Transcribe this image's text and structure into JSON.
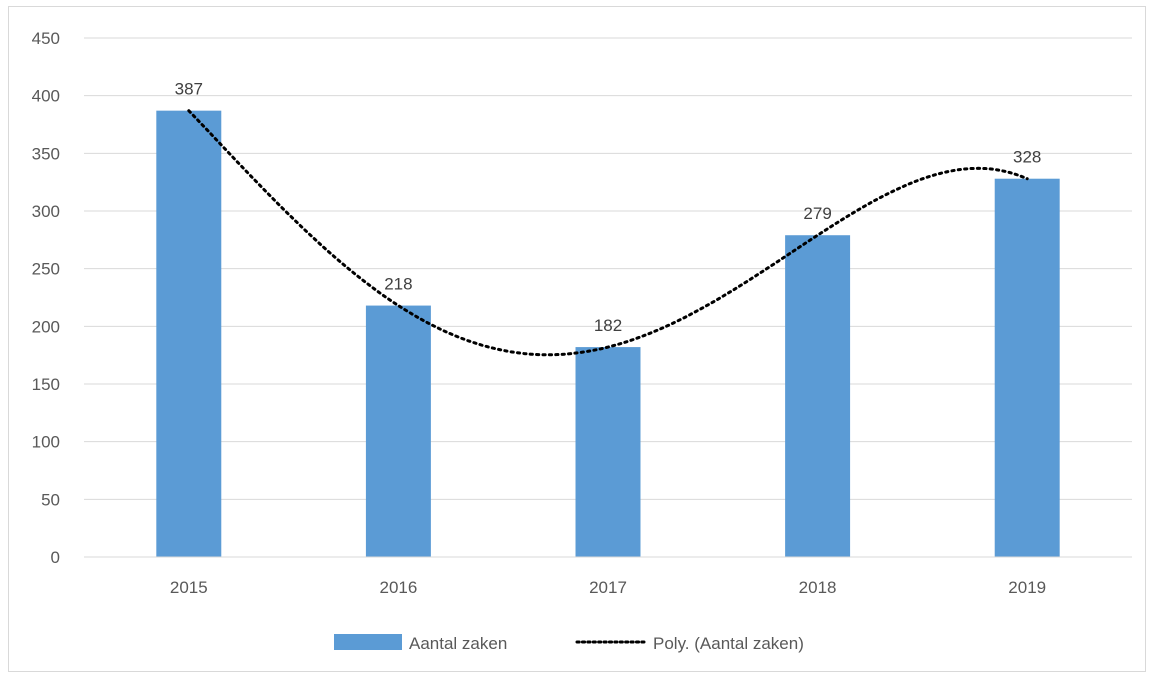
{
  "chart_data": {
    "type": "bar",
    "categories": [
      "2015",
      "2016",
      "2017",
      "2018",
      "2019"
    ],
    "series": [
      {
        "name": "Aantal zaken",
        "values": [
          387,
          218,
          182,
          279,
          328
        ],
        "color": "#5b9bd5"
      }
    ],
    "trendline": {
      "name": "Poly. (Aantal zaken)",
      "type": "polynomial",
      "style": "dotted",
      "color": "#000000"
    },
    "data_labels": [
      "387",
      "218",
      "182",
      "279",
      "328"
    ],
    "ylim": [
      0,
      450
    ],
    "yticks": [
      "0",
      "50",
      "100",
      "150",
      "200",
      "250",
      "300",
      "350",
      "400",
      "450"
    ],
    "grid": true,
    "legend_position": "bottom"
  }
}
